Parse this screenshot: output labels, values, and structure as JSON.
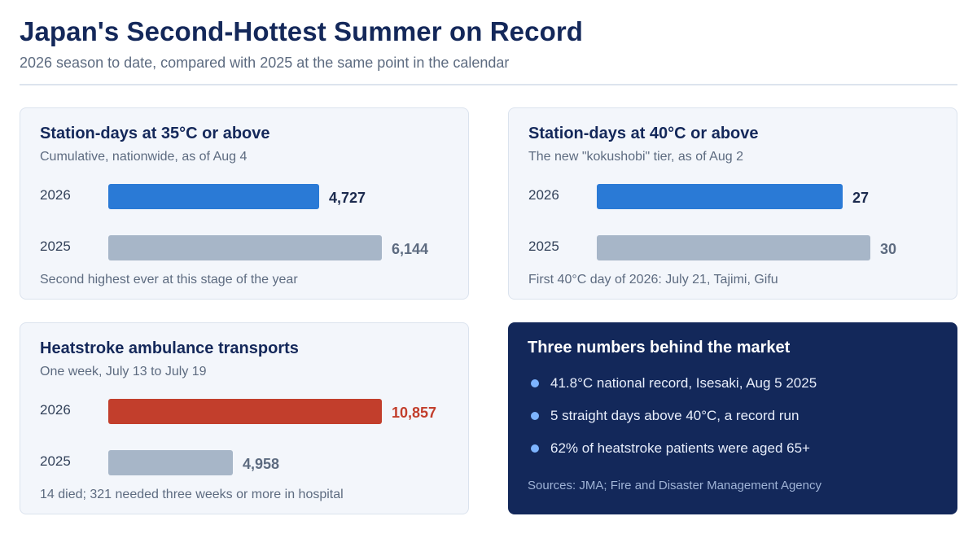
{
  "header": {
    "title": "Japan's Second-Hottest Summer on Record",
    "subtitle": "2026 season to date, compared with 2025 at the same point in the calendar"
  },
  "colors": {
    "current": "#2a7ad6",
    "prior": "#a7b6c8",
    "highlight": "#c23e2c",
    "current_text": "#1b2a4e",
    "prior_text": "#5d6b80"
  },
  "chart_data": [
    {
      "type": "bar",
      "orientation": "horizontal",
      "title": "Station-days at 35°C or above",
      "subtitle": "Cumulative, nationwide, as of Aug 4",
      "categories": [
        "2026",
        "2025"
      ],
      "values": [
        4727,
        6144
      ],
      "value_labels": [
        "4,727",
        "6,144"
      ],
      "footnote": "Second highest ever at this stage of the year"
    },
    {
      "type": "bar",
      "orientation": "horizontal",
      "title": "Station-days at 40°C or above",
      "subtitle": "The new \"kokushobi\" tier, as of Aug 2",
      "categories": [
        "2026",
        "2025"
      ],
      "values": [
        27,
        30
      ],
      "value_labels": [
        "27",
        "30"
      ],
      "footnote": "First 40°C day of 2026: July 21, Tajimi, Gifu"
    },
    {
      "type": "bar",
      "orientation": "horizontal",
      "title": "Heatstroke ambulance transports",
      "subtitle": "One week, July 13 to July 19",
      "categories": [
        "2026",
        "2025"
      ],
      "values": [
        10857,
        4958
      ],
      "value_labels": [
        "10,857",
        "4,958"
      ],
      "highlight_first": true,
      "footnote": "14 died; 321 needed three weeks or more in hospital"
    }
  ],
  "callout": {
    "title": "Three numbers behind the market",
    "items": [
      "41.8°C national record, Isesaki, Aug 5 2025",
      "5 straight days above 40°C, a record run",
      "62% of heatstroke patients were aged 65+"
    ],
    "sources": "Sources: JMA; Fire and Disaster Management Agency"
  }
}
